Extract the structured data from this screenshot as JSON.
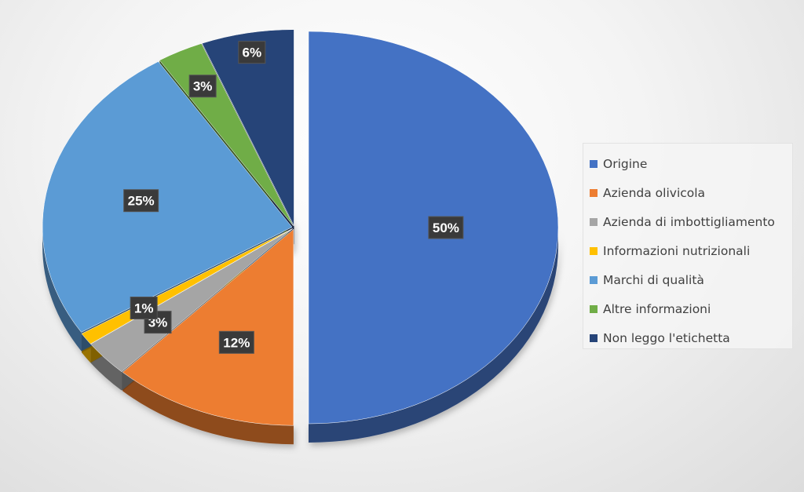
{
  "chart_data": {
    "type": "pie",
    "title": "",
    "exploded": true,
    "three_d": true,
    "legend_position": "right",
    "slices": [
      {
        "label": "Origine",
        "value": 50,
        "display": "50%",
        "color": "#4472c4"
      },
      {
        "label": "Azienda olivicola",
        "value": 12,
        "display": "12%",
        "color": "#ed7d31"
      },
      {
        "label": "Azienda di imbottigliamento",
        "value": 3,
        "display": "3%",
        "color": "#a5a5a5"
      },
      {
        "label": "Informazioni nutrizionali",
        "value": 1,
        "display": "1%",
        "color": "#ffc000"
      },
      {
        "label": "Marchi di qualità",
        "value": 25,
        "display": "25%",
        "color": "#5b9bd5"
      },
      {
        "label": "Altre informazioni",
        "value": 3,
        "display": "3%",
        "color": "#70ad47"
      },
      {
        "label": "Non leggo l'etichetta",
        "value": 6,
        "display": "6%",
        "color": "#264478"
      }
    ]
  }
}
